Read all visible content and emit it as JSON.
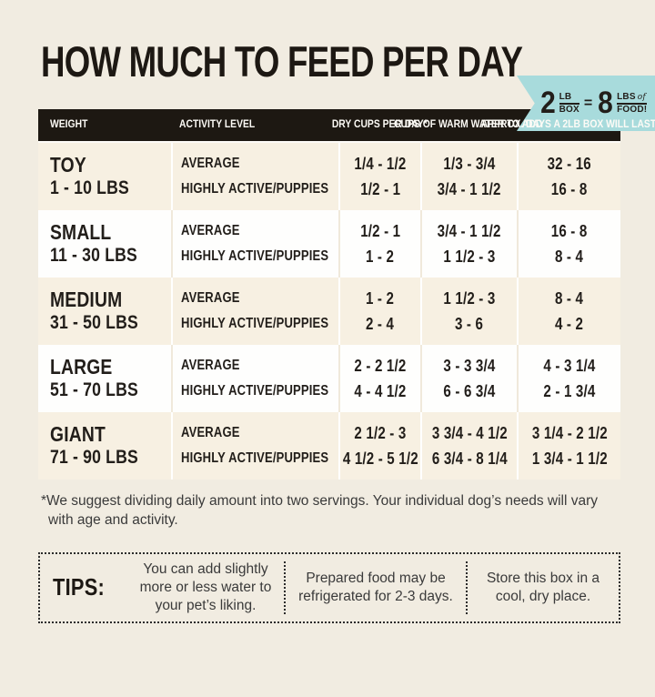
{
  "page": {
    "title": "HOW MUCH TO FEED PER DAY",
    "badge": {
      "qty1": "2",
      "frac1_top": "LB",
      "frac1_bottom": "BOX",
      "equals": "=",
      "qty2": "8",
      "frac2_top": "LBS",
      "frac2_of": "of",
      "frac2_bottom": "FOOD!"
    }
  },
  "table": {
    "headers": [
      "WEIGHT",
      "ACTIVITY LEVEL",
      "DRY CUPS\nPER DAY*",
      "CUPS OF WARM\nWATER TO ADD",
      "APPROX. DAYS A\n2LB BOX WILL LAST"
    ],
    "rows": [
      {
        "size": "TOY",
        "range": "1 - 10 LBS",
        "activity": [
          "AVERAGE",
          "HIGHLY ACTIVE/PUPPIES"
        ],
        "dry_cups": [
          "1/4 - 1/2",
          "1/2 - 1"
        ],
        "water": [
          "1/3 - 3/4",
          "3/4 - 1 1/2"
        ],
        "days": [
          "32 - 16",
          "16 - 8"
        ]
      },
      {
        "size": "SMALL",
        "range": "11 - 30 LBS",
        "activity": [
          "AVERAGE",
          "HIGHLY ACTIVE/PUPPIES"
        ],
        "dry_cups": [
          "1/2 - 1",
          "1 - 2"
        ],
        "water": [
          "3/4 - 1 1/2",
          "1 1/2 - 3"
        ],
        "days": [
          "16 - 8",
          "8 - 4"
        ]
      },
      {
        "size": "MEDIUM",
        "range": "31 - 50 LBS",
        "activity": [
          "AVERAGE",
          "HIGHLY ACTIVE/PUPPIES"
        ],
        "dry_cups": [
          "1 - 2",
          "2 - 4"
        ],
        "water": [
          "1 1/2 - 3",
          "3 - 6"
        ],
        "days": [
          "8 - 4",
          "4 - 2"
        ]
      },
      {
        "size": "LARGE",
        "range": "51 - 70 LBS",
        "activity": [
          "AVERAGE",
          "HIGHLY ACTIVE/PUPPIES"
        ],
        "dry_cups": [
          "2 - 2 1/2",
          "4 - 4 1/2"
        ],
        "water": [
          "3 - 3 3/4",
          "6 - 6 3/4"
        ],
        "days": [
          "4 - 3 1/4",
          "2 - 1 3/4"
        ]
      },
      {
        "size": "GIANT",
        "range": "71 - 90 LBS",
        "activity": [
          "AVERAGE",
          "HIGHLY ACTIVE/PUPPIES"
        ],
        "dry_cups": [
          "2 1/2 - 3",
          "4 1/2 - 5 1/2"
        ],
        "water": [
          "3 3/4 - 4 1/2",
          "6 3/4 - 8 1/4"
        ],
        "days": [
          "3 1/4 - 2 1/2",
          "1 3/4 - 1 1/2"
        ]
      }
    ]
  },
  "footnote": "*We suggest dividing daily amount into two servings. Your individual dog’s needs will vary\nwith age and activity.",
  "tips": {
    "label": "TIPS:",
    "items": [
      "You can add slightly more or less water to your pet’s liking.",
      "Prepared food may be refrigerated for 2-3 days.",
      "Store this box in a cool, dry place."
    ]
  },
  "colors": {
    "background": "#f1ece1",
    "accent_teal": "#a8dbdc",
    "header_black": "#1d1812",
    "row_cream": "#f7f0e2",
    "row_white": "#fefefd",
    "text_black": "#221e1a",
    "text_gray": "#3a3a3a"
  }
}
